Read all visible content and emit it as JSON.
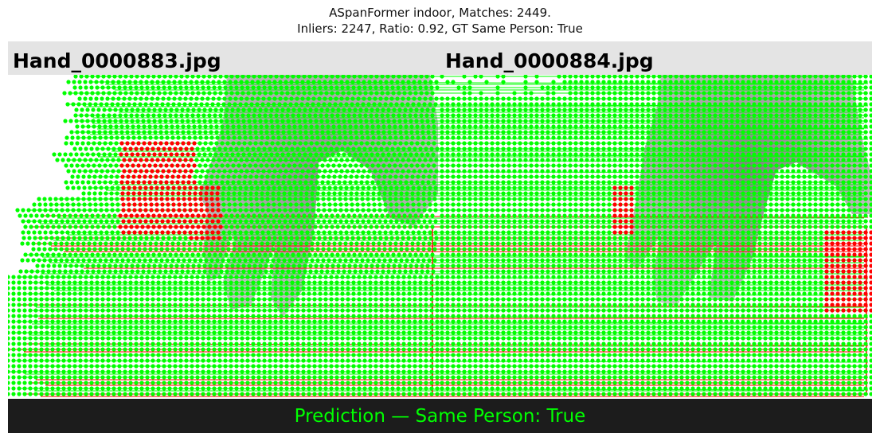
{
  "figure": {
    "title_line1": "ASpanFormer indoor, Matches: 2449.",
    "title_line2": "Inliers: 2247, Ratio: 0.92, GT Same Person: True"
  },
  "images": {
    "left_filename": "Hand_0000883.jpg",
    "right_filename": "Hand_0000884.jpg"
  },
  "matches": {
    "total": 2449,
    "inliers": 2247,
    "inlier_color": "#00ff00",
    "outlier_color": "#ff0000"
  },
  "prediction": {
    "text": "Prediction — Same Person: True",
    "color": "#00ff00"
  }
}
